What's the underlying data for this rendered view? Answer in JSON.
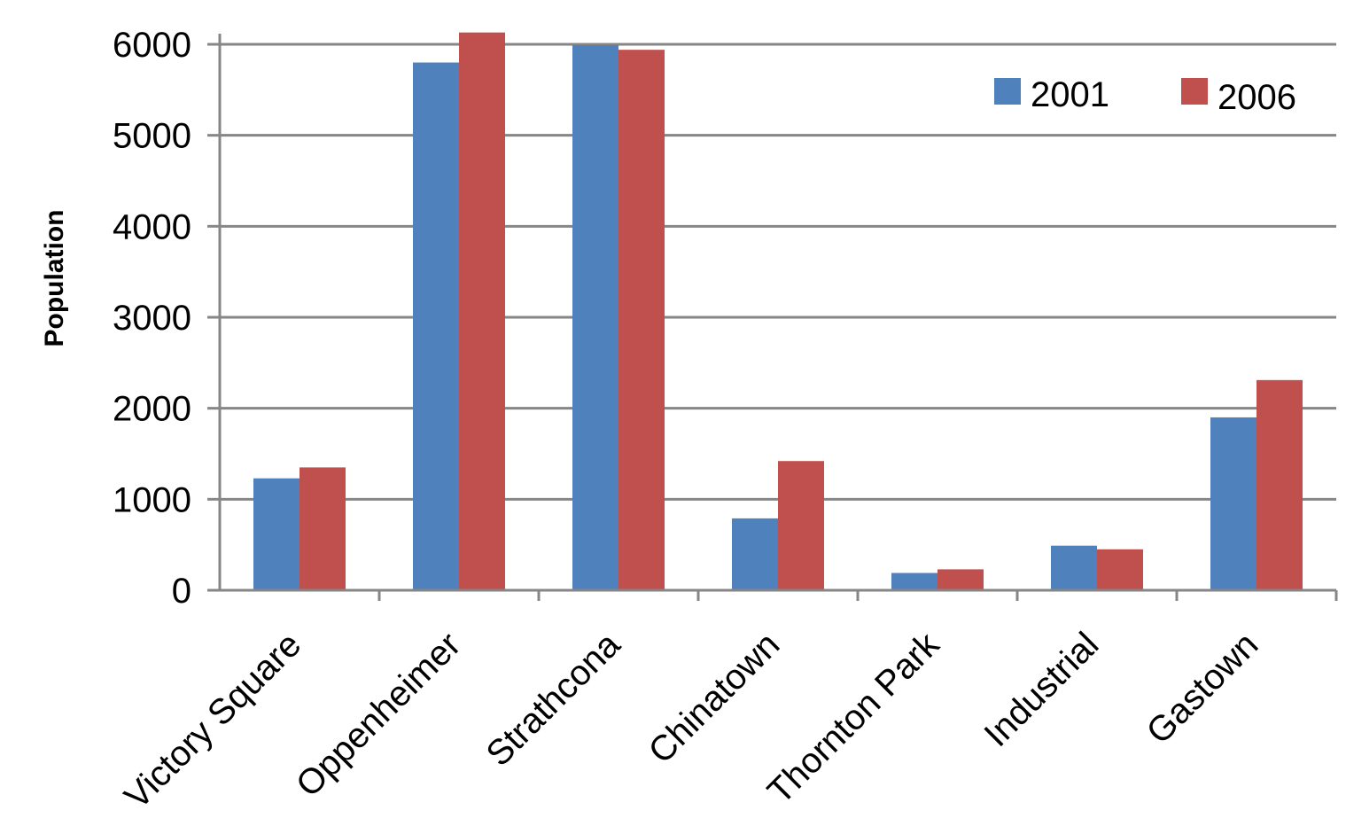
{
  "chart_data": {
    "type": "bar",
    "title": "",
    "xlabel": "",
    "ylabel": "Population",
    "ylim": [
      0,
      6000
    ],
    "yticks": [
      0,
      1000,
      2000,
      3000,
      4000,
      5000,
      6000
    ],
    "categories": [
      "Victory Square",
      "Oppenheimer",
      "Strathcona",
      "Chinatown",
      "Thornton Park",
      "Industrial",
      "Gastown"
    ],
    "series": [
      {
        "name": "2001",
        "color": "#4F81BD",
        "values": [
          1230,
          5800,
          5990,
          790,
          190,
          490,
          1900
        ]
      },
      {
        "name": "2006",
        "color": "#C0504D",
        "values": [
          1350,
          6130,
          5940,
          1420,
          230,
          450,
          2310
        ]
      }
    ],
    "grid": true,
    "legend_position": "top-right"
  }
}
